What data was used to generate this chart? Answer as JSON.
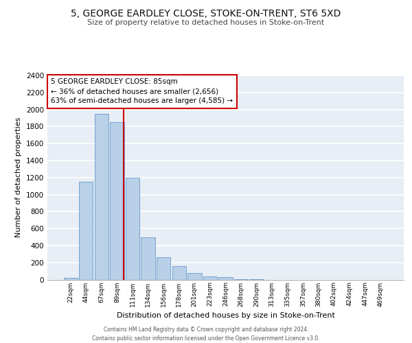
{
  "title": "5, GEORGE EARDLEY CLOSE, STOKE-ON-TRENT, ST6 5XD",
  "subtitle": "Size of property relative to detached houses in Stoke-on-Trent",
  "xlabel": "Distribution of detached houses by size in Stoke-on-Trent",
  "ylabel": "Number of detached properties",
  "categories": [
    "22sqm",
    "44sqm",
    "67sqm",
    "89sqm",
    "111sqm",
    "134sqm",
    "156sqm",
    "178sqm",
    "201sqm",
    "223sqm",
    "246sqm",
    "268sqm",
    "290sqm",
    "313sqm",
    "335sqm",
    "357sqm",
    "380sqm",
    "402sqm",
    "424sqm",
    "447sqm",
    "469sqm"
  ],
  "values": [
    20,
    1150,
    1950,
    1850,
    1200,
    500,
    260,
    155,
    75,
    40,
    25,
    5,
    5,
    0,
    0,
    0,
    0,
    0,
    0,
    0,
    0
  ],
  "bar_color": "#b8d0e8",
  "bar_edge_color": "#6699cc",
  "vline_color": "#cc0000",
  "vline_pos": 3.42,
  "annotation_text": "5 GEORGE EARDLEY CLOSE: 85sqm\n← 36% of detached houses are smaller (2,656)\n63% of semi-detached houses are larger (4,585) →",
  "annotation_box_color": "#ffffff",
  "annotation_box_edge": "#cc0000",
  "ylim": [
    0,
    2400
  ],
  "yticks": [
    0,
    200,
    400,
    600,
    800,
    1000,
    1200,
    1400,
    1600,
    1800,
    2000,
    2200,
    2400
  ],
  "bg_color": "#e8eef5",
  "grid_color": "#ffffff",
  "footer_line1": "Contains HM Land Registry data © Crown copyright and database right 2024.",
  "footer_line2": "Contains public sector information licensed under the Open Government Licence v3.0."
}
